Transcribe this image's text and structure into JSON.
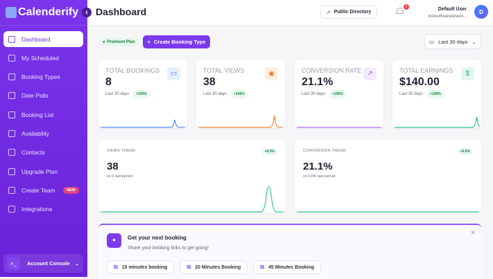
{
  "app": {
    "name": "Calenderify"
  },
  "sidebar": {
    "items": [
      {
        "label": "Dashboard",
        "icon": "grid-icon",
        "active": true
      },
      {
        "label": "My Scheduled",
        "icon": "calendar-icon"
      },
      {
        "label": "Booking Types",
        "icon": "link-icon"
      },
      {
        "label": "Date Polls",
        "icon": "list-check-icon"
      },
      {
        "label": "Booking List",
        "icon": "calendar-icon"
      },
      {
        "label": "Availability",
        "icon": "clock-icon"
      },
      {
        "label": "Contacts",
        "icon": "users-icon"
      },
      {
        "label": "Upgrade Plan",
        "icon": "sparkles-icon"
      },
      {
        "label": "Create Team",
        "icon": "user-plus-icon",
        "badge": "NEW"
      },
      {
        "label": "Integrations",
        "icon": "blocks-icon"
      }
    ],
    "console": "Account Console"
  },
  "header": {
    "title": "Dashboard",
    "public_directory": "Public Directory",
    "notifications": "2",
    "user_name": "Default User",
    "user_email": "bcdsoftwaredevelo...",
    "avatar": "D"
  },
  "toolbar": {
    "plan": "Premium Plan",
    "create": "Create Booking Type",
    "range": "Last 30 days"
  },
  "stats": [
    {
      "label": "TOTAL BOOKINGS",
      "value": "8",
      "sub": "Last 30 days",
      "delta": "+100%",
      "icon": "calendar-icon",
      "color": "#3b82f6"
    },
    {
      "label": "TOTAL VIEWS",
      "value": "38",
      "sub": "Last 30 days",
      "delta": "+100%",
      "icon": "eye-icon",
      "color": "#f97316"
    },
    {
      "label": "CONVERSION RATE",
      "value": "21.1%",
      "sub": "Last 30 days",
      "delta": "+100%",
      "icon": "trending-up-icon",
      "color": "#a855f7"
    },
    {
      "label": "TOTAL EARNINGS",
      "value": "$140.00",
      "sub": "Last 30 days",
      "delta": "+100%",
      "icon": "dollar-icon",
      "color": "#10b981"
    }
  ],
  "trends": [
    {
      "label": "VIEWS TREND",
      "value": "38",
      "sub": "vs 0 last period",
      "delta": "+0.0%"
    },
    {
      "label": "CONVERSION TREND",
      "value": "21.1%",
      "sub": "vs 0.0% last period",
      "delta": "+0.0%"
    }
  ],
  "banner": {
    "title": "Get your next booking",
    "subtitle": "Share your booking links to get going!",
    "links": [
      "15 minutes booking",
      "20 Minutes Booking",
      "45 Minutes Booking"
    ]
  }
}
